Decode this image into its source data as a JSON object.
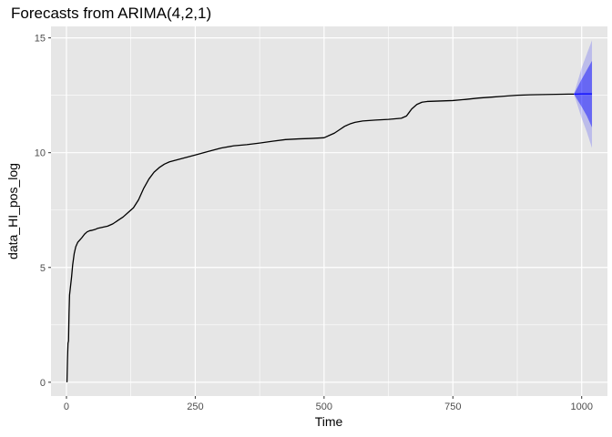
{
  "chart_data": {
    "type": "line",
    "title": "Forecasts from ARIMA(4,2,1)",
    "xlabel": "Time",
    "ylabel": "data_HI_pos_log",
    "xlim": [
      -30,
      1050
    ],
    "ylim": [
      -0.6,
      15.5
    ],
    "x_ticks": [
      0,
      250,
      500,
      750,
      1000
    ],
    "y_ticks": [
      0,
      5,
      10,
      15
    ],
    "x_tick_labels": [
      "0",
      "250",
      "500",
      "750",
      "1000"
    ],
    "y_tick_labels": [
      "0",
      "5",
      "10",
      "15"
    ],
    "grid": true,
    "legend": "none",
    "colors": {
      "panel": "#e6e6e6",
      "grid": "#ffffff",
      "line": "#000000",
      "forecast": "#0000ff"
    },
    "series": [
      {
        "x": [
          1,
          2,
          3,
          4,
          5,
          6,
          8,
          10,
          12,
          15,
          18,
          22,
          26,
          30,
          35,
          40,
          45,
          50,
          55,
          60,
          70,
          80,
          90,
          100,
          110,
          120,
          130,
          140,
          150,
          160,
          170,
          180,
          190,
          200,
          225,
          250,
          275,
          300,
          325,
          350,
          375,
          400,
          425,
          450,
          475,
          500,
          510,
          520,
          530,
          540,
          550,
          560,
          575,
          600,
          625,
          650,
          660,
          665,
          670,
          675,
          680,
          690,
          700,
          725,
          750,
          775,
          800,
          825,
          850,
          875,
          900,
          925,
          950,
          975,
          985
        ],
        "y": [
          0.0,
          1.0,
          1.7,
          1.8,
          3.0,
          3.8,
          4.2,
          4.6,
          5.1,
          5.6,
          5.9,
          6.1,
          6.2,
          6.3,
          6.45,
          6.55,
          6.6,
          6.62,
          6.65,
          6.7,
          6.75,
          6.8,
          6.9,
          7.05,
          7.2,
          7.4,
          7.6,
          7.95,
          8.45,
          8.85,
          9.15,
          9.35,
          9.5,
          9.6,
          9.75,
          9.9,
          10.05,
          10.2,
          10.3,
          10.35,
          10.42,
          10.5,
          10.57,
          10.6,
          10.62,
          10.65,
          10.75,
          10.85,
          11.0,
          11.15,
          11.25,
          11.32,
          11.38,
          11.42,
          11.45,
          11.5,
          11.6,
          11.75,
          11.9,
          12.0,
          12.1,
          12.2,
          12.23,
          12.25,
          12.27,
          12.32,
          12.38,
          12.42,
          12.46,
          12.5,
          12.52,
          12.53,
          12.54,
          12.55,
          12.55
        ]
      }
    ],
    "forecast": {
      "x": [
        985,
        1000,
        1010,
        1020
      ],
      "mean": [
        12.55,
        12.56,
        12.56,
        12.56
      ],
      "lower80": [
        12.55,
        12.0,
        11.6,
        11.1
      ],
      "upper80": [
        12.55,
        13.2,
        13.6,
        14.0
      ],
      "lower95": [
        12.55,
        11.5,
        10.9,
        10.2
      ],
      "upper95": [
        12.55,
        13.7,
        14.3,
        14.9
      ]
    }
  }
}
